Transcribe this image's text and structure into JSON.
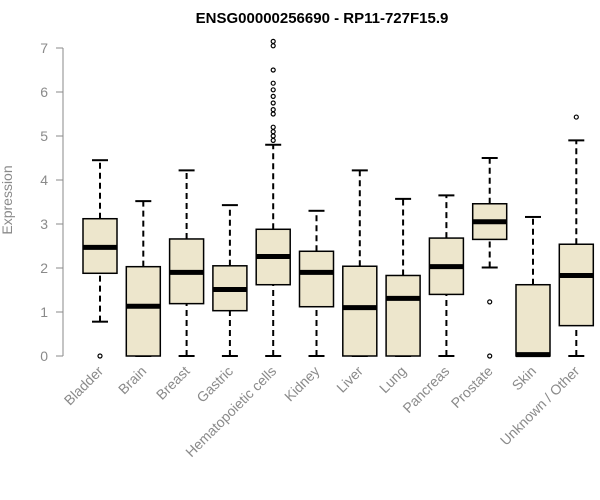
{
  "chart_data": {
    "type": "box",
    "title": "ENSG00000256690 - RP11-727F15.9",
    "ylabel": "Expression",
    "xlabel": "",
    "ylim": [
      0,
      7
    ],
    "yticks": [
      0,
      1,
      2,
      3,
      4,
      5,
      6,
      7
    ],
    "grid": false,
    "colors": {
      "box_fill": "#ede6cc",
      "box_stroke": "#000000",
      "axis": "#8a8a8a"
    },
    "categories": [
      "Bladder",
      "Brain",
      "Breast",
      "Gastric",
      "Hematopoietic cells",
      "Kidney",
      "Liver",
      "Lung",
      "Pancreas",
      "Prostate",
      "Skin",
      "Unknown / Other"
    ],
    "boxes": [
      {
        "label": "Bladder",
        "whisker_low": 0.78,
        "q1": 1.88,
        "median": 2.47,
        "q3": 3.12,
        "whisker_high": 4.45,
        "outliers": [
          0.0
        ]
      },
      {
        "label": "Brain",
        "whisker_low": 0.0,
        "q1": 0.0,
        "median": 1.13,
        "q3": 2.03,
        "whisker_high": 3.52,
        "outliers": []
      },
      {
        "label": "Breast",
        "whisker_low": 0.0,
        "q1": 1.19,
        "median": 1.9,
        "q3": 2.66,
        "whisker_high": 4.22,
        "outliers": []
      },
      {
        "label": "Gastric",
        "whisker_low": 0.0,
        "q1": 1.03,
        "median": 1.51,
        "q3": 2.05,
        "whisker_high": 3.43,
        "outliers": []
      },
      {
        "label": "Hematopoietic cells",
        "whisker_low": 0.0,
        "q1": 1.62,
        "median": 2.26,
        "q3": 2.88,
        "whisker_high": 4.8,
        "outliers": [
          4.9,
          5.0,
          5.1,
          5.2,
          5.5,
          5.6,
          5.75,
          5.9,
          6.05,
          6.2,
          6.5,
          7.05,
          7.15
        ]
      },
      {
        "label": "Kidney",
        "whisker_low": 0.0,
        "q1": 1.12,
        "median": 1.9,
        "q3": 2.38,
        "whisker_high": 3.3,
        "outliers": []
      },
      {
        "label": "Liver",
        "whisker_low": 0.0,
        "q1": 0.0,
        "median": 1.1,
        "q3": 2.04,
        "whisker_high": 4.22,
        "outliers": []
      },
      {
        "label": "Lung",
        "whisker_low": 0.0,
        "q1": 0.0,
        "median": 1.31,
        "q3": 1.83,
        "whisker_high": 3.57,
        "outliers": []
      },
      {
        "label": "Pancreas",
        "whisker_low": 0.0,
        "q1": 1.4,
        "median": 2.03,
        "q3": 2.68,
        "whisker_high": 3.65,
        "outliers": []
      },
      {
        "label": "Prostate",
        "whisker_low": 2.01,
        "q1": 2.65,
        "median": 3.05,
        "q3": 3.46,
        "whisker_high": 4.5,
        "outliers": [
          1.23,
          0.0
        ]
      },
      {
        "label": "Skin",
        "whisker_low": 0.0,
        "q1": 0.0,
        "median": 0.03,
        "q3": 1.62,
        "whisker_high": 3.16,
        "outliers": []
      },
      {
        "label": "Unknown / Other",
        "whisker_low": 0.0,
        "q1": 0.69,
        "median": 1.83,
        "q3": 2.54,
        "whisker_high": 4.9,
        "outliers": [
          5.43
        ]
      }
    ]
  }
}
